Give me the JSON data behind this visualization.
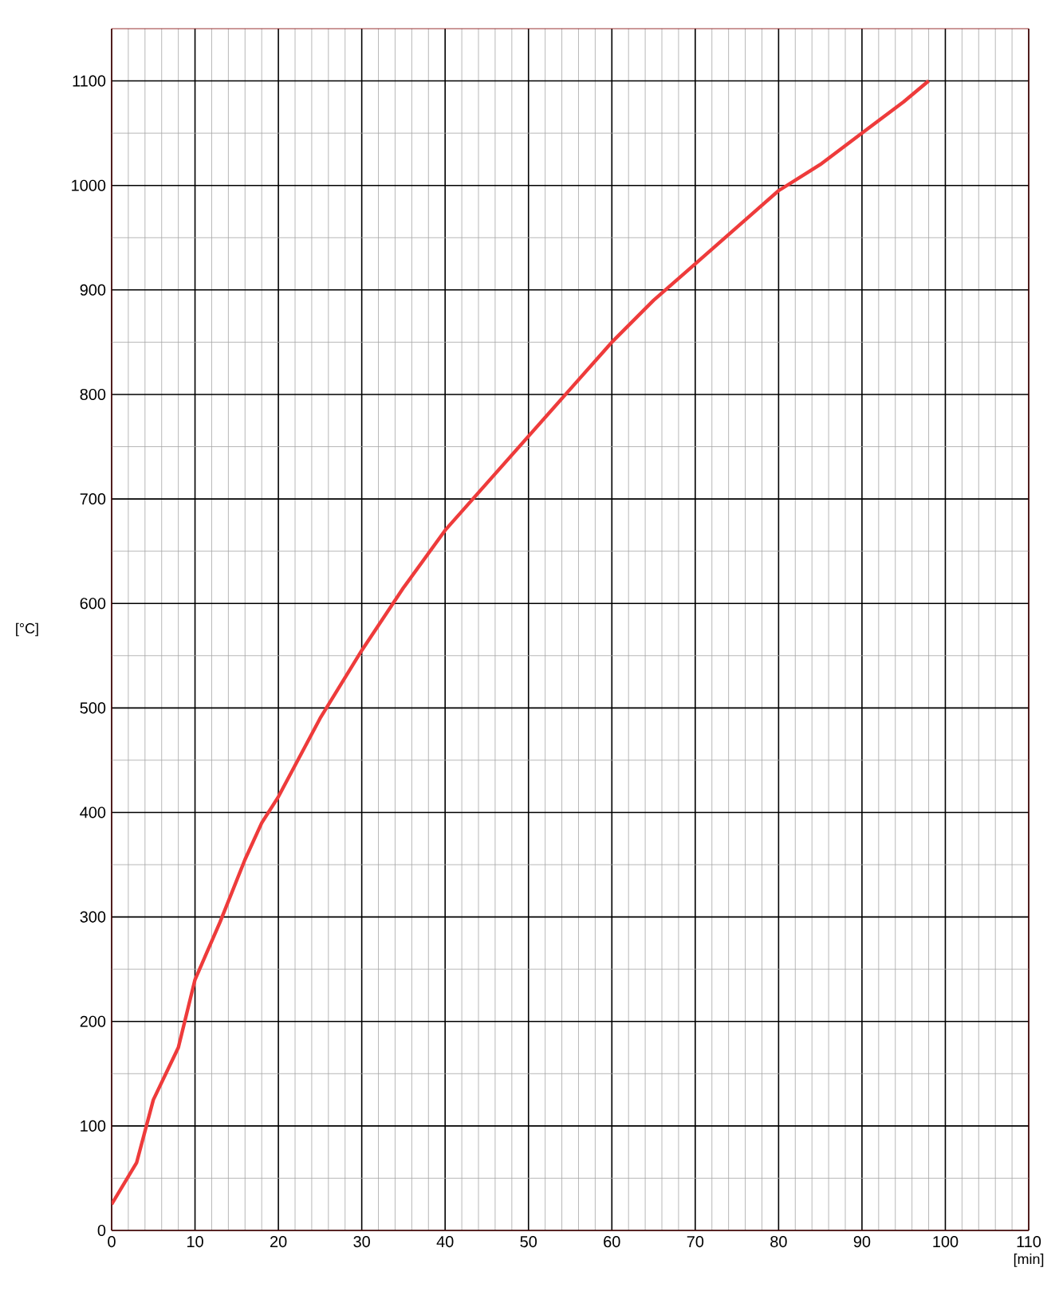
{
  "chart_data": {
    "type": "line",
    "xlabel": "[min]",
    "ylabel": "[°C]",
    "xlim": [
      0,
      110
    ],
    "ylim": [
      0,
      1150
    ],
    "xticks": [
      0,
      10,
      20,
      30,
      40,
      50,
      60,
      70,
      80,
      90,
      100,
      110
    ],
    "yticks": [
      0,
      100,
      200,
      300,
      400,
      500,
      600,
      700,
      800,
      900,
      1000,
      1100
    ],
    "grid": true,
    "marker": "none",
    "line_style": "solid",
    "series": [
      {
        "color": "#ee3b3b",
        "x": [
          0,
          3,
          5,
          8,
          10,
          13,
          16,
          18,
          20,
          25,
          30,
          35,
          40,
          45,
          50,
          55,
          60,
          65,
          70,
          75,
          80,
          85,
          90,
          95,
          98
        ],
        "values": [
          25,
          65,
          125,
          175,
          240,
          295,
          355,
          390,
          415,
          490,
          555,
          615,
          670,
          715,
          760,
          805,
          850,
          890,
          925,
          960,
          995,
          1020,
          1050,
          1080,
          1100
        ]
      }
    ]
  }
}
